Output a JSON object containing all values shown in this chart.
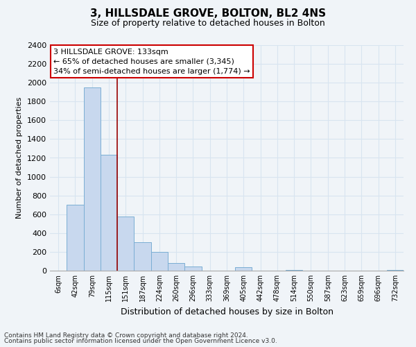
{
  "title": "3, HILLSDALE GROVE, BOLTON, BL2 4NS",
  "subtitle": "Size of property relative to detached houses in Bolton",
  "xlabel": "Distribution of detached houses by size in Bolton",
  "ylabel": "Number of detached properties",
  "bar_labels": [
    "6sqm",
    "42sqm",
    "79sqm",
    "115sqm",
    "151sqm",
    "187sqm",
    "224sqm",
    "260sqm",
    "296sqm",
    "333sqm",
    "369sqm",
    "405sqm",
    "442sqm",
    "478sqm",
    "514sqm",
    "550sqm",
    "587sqm",
    "623sqm",
    "659sqm",
    "696sqm",
    "732sqm"
  ],
  "bar_heights": [
    0,
    700,
    1950,
    1230,
    575,
    300,
    200,
    80,
    45,
    0,
    0,
    35,
    0,
    0,
    10,
    0,
    0,
    0,
    0,
    0,
    5
  ],
  "bar_color": "#c8d8ee",
  "bar_edge_color": "#7aaed4",
  "vline_x_index": 3,
  "vline_color": "#990000",
  "annotation_title": "3 HILLSDALE GROVE: 133sqm",
  "annotation_line1": "← 65% of detached houses are smaller (3,345)",
  "annotation_line2": "34% of semi-detached houses are larger (1,774) →",
  "annotation_box_facecolor": "#ffffff",
  "annotation_box_edgecolor": "#cc0000",
  "ylim": [
    0,
    2400
  ],
  "yticks": [
    0,
    200,
    400,
    600,
    800,
    1000,
    1200,
    1400,
    1600,
    1800,
    2000,
    2200,
    2400
  ],
  "footnote1": "Contains HM Land Registry data © Crown copyright and database right 2024.",
  "footnote2": "Contains public sector information licensed under the Open Government Licence v3.0.",
  "bg_color": "#f0f4f8",
  "grid_color": "#d8e4f0",
  "title_fontsize": 11,
  "subtitle_fontsize": 9,
  "ylabel_fontsize": 8,
  "xlabel_fontsize": 9,
  "ytick_fontsize": 8,
  "xtick_fontsize": 7
}
